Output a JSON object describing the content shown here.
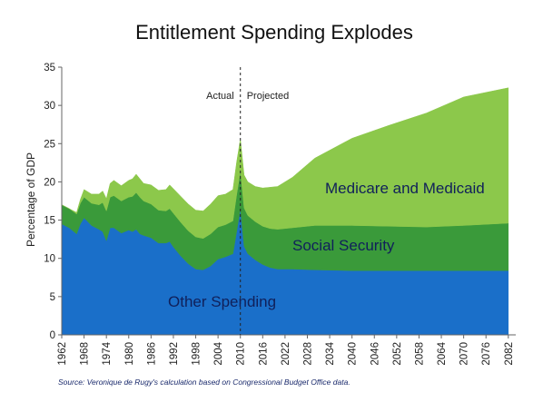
{
  "chart_data": {
    "type": "area",
    "stacked": true,
    "title": "Entitlement Spending Explodes",
    "ylabel": "Percentage of GDP",
    "xlabel": "",
    "ylim": [
      0,
      35
    ],
    "yticks": [
      0,
      5,
      10,
      15,
      20,
      25,
      30,
      35
    ],
    "xlim": [
      1962,
      2084
    ],
    "xticks": [
      1962,
      1968,
      1974,
      1980,
      1986,
      1992,
      1998,
      2004,
      2010,
      2016,
      2022,
      2028,
      2034,
      2040,
      2046,
      2052,
      2058,
      2064,
      2070,
      2076,
      2082
    ],
    "grid": false,
    "divider_year": 2010,
    "annotations": {
      "left": "Actual",
      "right": "Projected"
    },
    "series": [
      {
        "name": "Other Spending",
        "color": "#1a6fc9",
        "x": [
          1962,
          1964,
          1966,
          1967,
          1968,
          1970,
          1972,
          1973,
          1974,
          1975,
          1976,
          1978,
          1980,
          1981,
          1982,
          1983,
          1984,
          1986,
          1988,
          1990,
          1991,
          1992,
          1994,
          1996,
          1998,
          2000,
          2002,
          2004,
          2006,
          2008,
          2009,
          2010,
          2011,
          2012,
          2014,
          2016,
          2018,
          2020,
          2024,
          2030,
          2040,
          2050,
          2060,
          2070,
          2082
        ],
        "values": [
          14.5,
          14.0,
          13.2,
          14.5,
          15.3,
          14.3,
          13.8,
          13.5,
          12.3,
          14.0,
          14.0,
          13.3,
          13.7,
          13.5,
          13.8,
          13.2,
          13.0,
          12.7,
          12.0,
          12.0,
          12.2,
          11.5,
          10.3,
          9.3,
          8.6,
          8.5,
          9.0,
          9.9,
          10.2,
          10.6,
          13.5,
          16.5,
          11.6,
          10.6,
          9.8,
          9.2,
          8.8,
          8.6,
          8.6,
          8.5,
          8.4,
          8.4,
          8.4,
          8.4,
          8.4
        ]
      },
      {
        "name": "Social Security",
        "color": "#3a9a3a",
        "x": [
          1962,
          1964,
          1966,
          1967,
          1968,
          1970,
          1972,
          1973,
          1974,
          1975,
          1976,
          1978,
          1980,
          1981,
          1982,
          1983,
          1984,
          1986,
          1988,
          1990,
          1991,
          1992,
          1994,
          1996,
          1998,
          2000,
          2002,
          2004,
          2006,
          2008,
          2009,
          2010,
          2011,
          2012,
          2014,
          2016,
          2018,
          2020,
          2024,
          2030,
          2040,
          2050,
          2060,
          2070,
          2082
        ],
        "values": [
          2.5,
          2.5,
          2.6,
          2.7,
          2.7,
          2.9,
          3.2,
          3.8,
          3.9,
          4.0,
          4.2,
          4.2,
          4.3,
          4.6,
          4.8,
          4.8,
          4.5,
          4.4,
          4.3,
          4.2,
          4.3,
          4.4,
          4.4,
          4.3,
          4.2,
          4.1,
          4.2,
          4.2,
          4.2,
          4.3,
          4.8,
          4.9,
          5.0,
          5.0,
          5.0,
          5.0,
          5.1,
          5.2,
          5.4,
          5.8,
          5.9,
          5.8,
          5.7,
          5.9,
          6.2
        ]
      },
      {
        "name": "Medicare and Medicaid",
        "color": "#8cc84b",
        "x": [
          1962,
          1964,
          1966,
          1967,
          1968,
          1970,
          1972,
          1973,
          1974,
          1975,
          1976,
          1978,
          1980,
          1981,
          1982,
          1983,
          1984,
          1986,
          1988,
          1990,
          1991,
          1992,
          1994,
          1996,
          1998,
          2000,
          2002,
          2004,
          2006,
          2008,
          2009,
          2010,
          2011,
          2012,
          2014,
          2016,
          2018,
          2020,
          2024,
          2030,
          2040,
          2050,
          2060,
          2070,
          2082
        ],
        "values": [
          0.0,
          0.0,
          0.2,
          0.5,
          1.0,
          1.2,
          1.4,
          1.5,
          1.6,
          1.8,
          2.0,
          2.0,
          2.2,
          2.3,
          2.4,
          2.4,
          2.3,
          2.5,
          2.6,
          2.8,
          3.1,
          3.2,
          3.4,
          3.5,
          3.5,
          3.6,
          3.9,
          4.1,
          4.0,
          4.1,
          4.3,
          4.2,
          4.3,
          4.4,
          4.6,
          5.0,
          5.4,
          5.6,
          6.6,
          8.8,
          11.4,
          13.2,
          14.9,
          16.8,
          17.7
        ]
      }
    ]
  },
  "labels": {
    "medicare": "Medicare and Medicaid",
    "social_security": "Social Security",
    "other": "Other Spending"
  },
  "source": "Source: Veronique de Rugy's calculation based on Congressional Budget Office data."
}
